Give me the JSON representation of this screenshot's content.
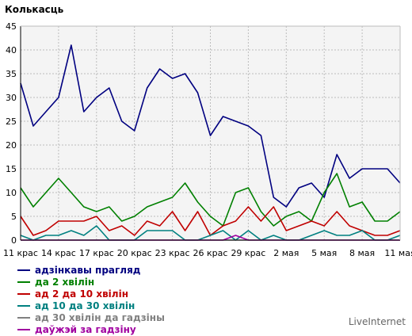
{
  "chart_data": {
    "type": "line",
    "ylabel": "Колькасць",
    "ylim": [
      0,
      45
    ],
    "yticks": [
      0,
      5,
      10,
      15,
      20,
      25,
      30,
      35,
      40,
      45
    ],
    "grid": true,
    "x": [
      "11 крас",
      "12 крас",
      "13 крас",
      "14 крас",
      "15 крас",
      "16 крас",
      "17 крас",
      "18 крас",
      "19 крас",
      "20 крас",
      "21 крас",
      "22 крас",
      "23 крас",
      "24 крас",
      "25 крас",
      "26 крас",
      "27 крас",
      "28 крас",
      "29 крас",
      "30 крас",
      "1 мая",
      "2 мая",
      "3 мая",
      "4 мая",
      "5 мая",
      "6 мая",
      "7 мая",
      "8 мая",
      "9 мая",
      "10 мая",
      "11 мая"
    ],
    "xtick_labels": [
      {
        "index": 0,
        "label": "11 крас"
      },
      {
        "index": 3,
        "label": "14 крас"
      },
      {
        "index": 6,
        "label": "17 крас"
      },
      {
        "index": 9,
        "label": "20 крас"
      },
      {
        "index": 12,
        "label": "23 крас"
      },
      {
        "index": 15,
        "label": "26 крас"
      },
      {
        "index": 18,
        "label": "29 крас"
      },
      {
        "index": 21,
        "label": "2 мая"
      },
      {
        "index": 24,
        "label": "5 мая"
      },
      {
        "index": 27,
        "label": "8 мая"
      },
      {
        "index": 30,
        "label": "11 мая"
      }
    ],
    "legend_position": "bottom-left",
    "series": [
      {
        "name": "адзінкавы прагляд",
        "color": "#000080",
        "values": [
          33,
          24,
          27,
          30,
          41,
          27,
          30,
          32,
          25,
          23,
          32,
          36,
          34,
          35,
          31,
          22,
          26,
          25,
          24,
          22,
          9,
          7,
          11,
          12,
          9,
          18,
          13,
          15,
          15,
          15,
          12
        ]
      },
      {
        "name": "да 2 хвілін",
        "color": "#008000",
        "values": [
          11,
          7,
          10,
          13,
          10,
          7,
          6,
          7,
          4,
          5,
          7,
          8,
          9,
          12,
          8,
          5,
          3,
          10,
          11,
          6,
          3,
          5,
          6,
          4,
          10,
          14,
          7,
          8,
          4,
          4,
          6
        ]
      },
      {
        "name": "ад 2 да 10 хвілін",
        "color": "#c00000",
        "values": [
          5,
          1,
          2,
          4,
          4,
          4,
          5,
          2,
          3,
          1,
          4,
          3,
          6,
          2,
          6,
          1,
          3,
          4,
          7,
          4,
          7,
          2,
          3,
          4,
          3,
          6,
          3,
          2,
          1,
          1,
          2
        ]
      },
      {
        "name": "ад 10 да 30 хвілін",
        "color": "#008080",
        "values": [
          1,
          0,
          1,
          1,
          2,
          1,
          3,
          0,
          0,
          0,
          2,
          2,
          2,
          0,
          0,
          1,
          2,
          0,
          2,
          0,
          1,
          0,
          0,
          1,
          2,
          1,
          1,
          2,
          0,
          0,
          1
        ]
      },
      {
        "name": "ад 30 хвілін да гадзіны",
        "color": "#808080",
        "values": [
          0,
          0,
          0,
          0,
          0,
          0,
          0,
          0,
          0,
          0,
          0,
          0,
          0,
          0,
          0,
          0,
          0,
          0,
          0,
          0,
          0,
          0,
          0,
          0,
          0,
          0,
          0,
          0,
          0,
          0,
          0
        ]
      },
      {
        "name": "даўжэй за гадзіну",
        "color": "#a000a0",
        "values": [
          0,
          0,
          0,
          0,
          0,
          0,
          0,
          0,
          0,
          0,
          0,
          0,
          0,
          0,
          0,
          0,
          0,
          1,
          0,
          0,
          0,
          0,
          0,
          0,
          0,
          0,
          0,
          0,
          0,
          0,
          0
        ]
      }
    ]
  },
  "brand": "LiveInternet"
}
